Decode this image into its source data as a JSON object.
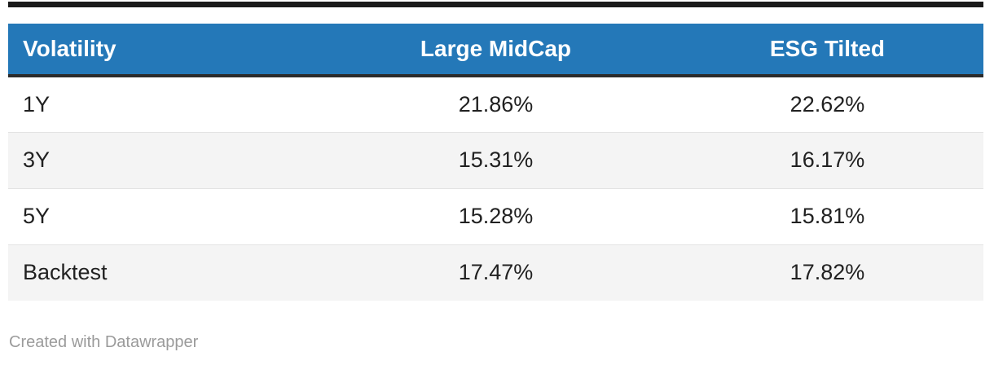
{
  "chart_data": {
    "type": "table",
    "title": "",
    "columns": [
      "Volatility",
      "Large MidCap",
      "ESG Tilted"
    ],
    "rows": [
      [
        "1Y",
        "21.86%",
        "22.62%"
      ],
      [
        "3Y",
        "15.31%",
        "16.17%"
      ],
      [
        "5Y",
        "15.28%",
        "15.81%"
      ],
      [
        "Backtest",
        "17.47%",
        "17.82%"
      ]
    ],
    "series": [
      {
        "name": "Large MidCap",
        "values": [
          21.86,
          15.31,
          15.28,
          17.47
        ]
      },
      {
        "name": "ESG Tilted",
        "values": [
          22.62,
          16.17,
          15.81,
          17.82
        ]
      }
    ],
    "categories": [
      "1Y",
      "3Y",
      "5Y",
      "Backtest"
    ],
    "unit": "%",
    "legend_position": "none",
    "grid": "zebra-rows"
  },
  "table": {
    "columns": [
      {
        "label": "Volatility",
        "align": "left"
      },
      {
        "label": "Large MidCap",
        "align": "center"
      },
      {
        "label": "ESG Tilted",
        "align": "center"
      }
    ],
    "rows": [
      {
        "label": "1Y",
        "values": [
          "21.86%",
          "22.62%"
        ]
      },
      {
        "label": "3Y",
        "values": [
          "15.31%",
          "16.17%"
        ]
      },
      {
        "label": "5Y",
        "values": [
          "15.28%",
          "15.81%"
        ]
      },
      {
        "label": "Backtest",
        "values": [
          "17.47%",
          "17.82%"
        ]
      }
    ]
  },
  "footer": {
    "credit": "Created with Datawrapper"
  },
  "colors": {
    "header_bg": "#2478b8",
    "header_text": "#ffffff",
    "header_border": "#2b2b2b",
    "top_rule": "#1a1a1a",
    "row_alt_bg": "#f4f4f4",
    "row_border": "#e3e3e3",
    "body_text": "#212121",
    "footer_text": "#9b9b9b"
  }
}
